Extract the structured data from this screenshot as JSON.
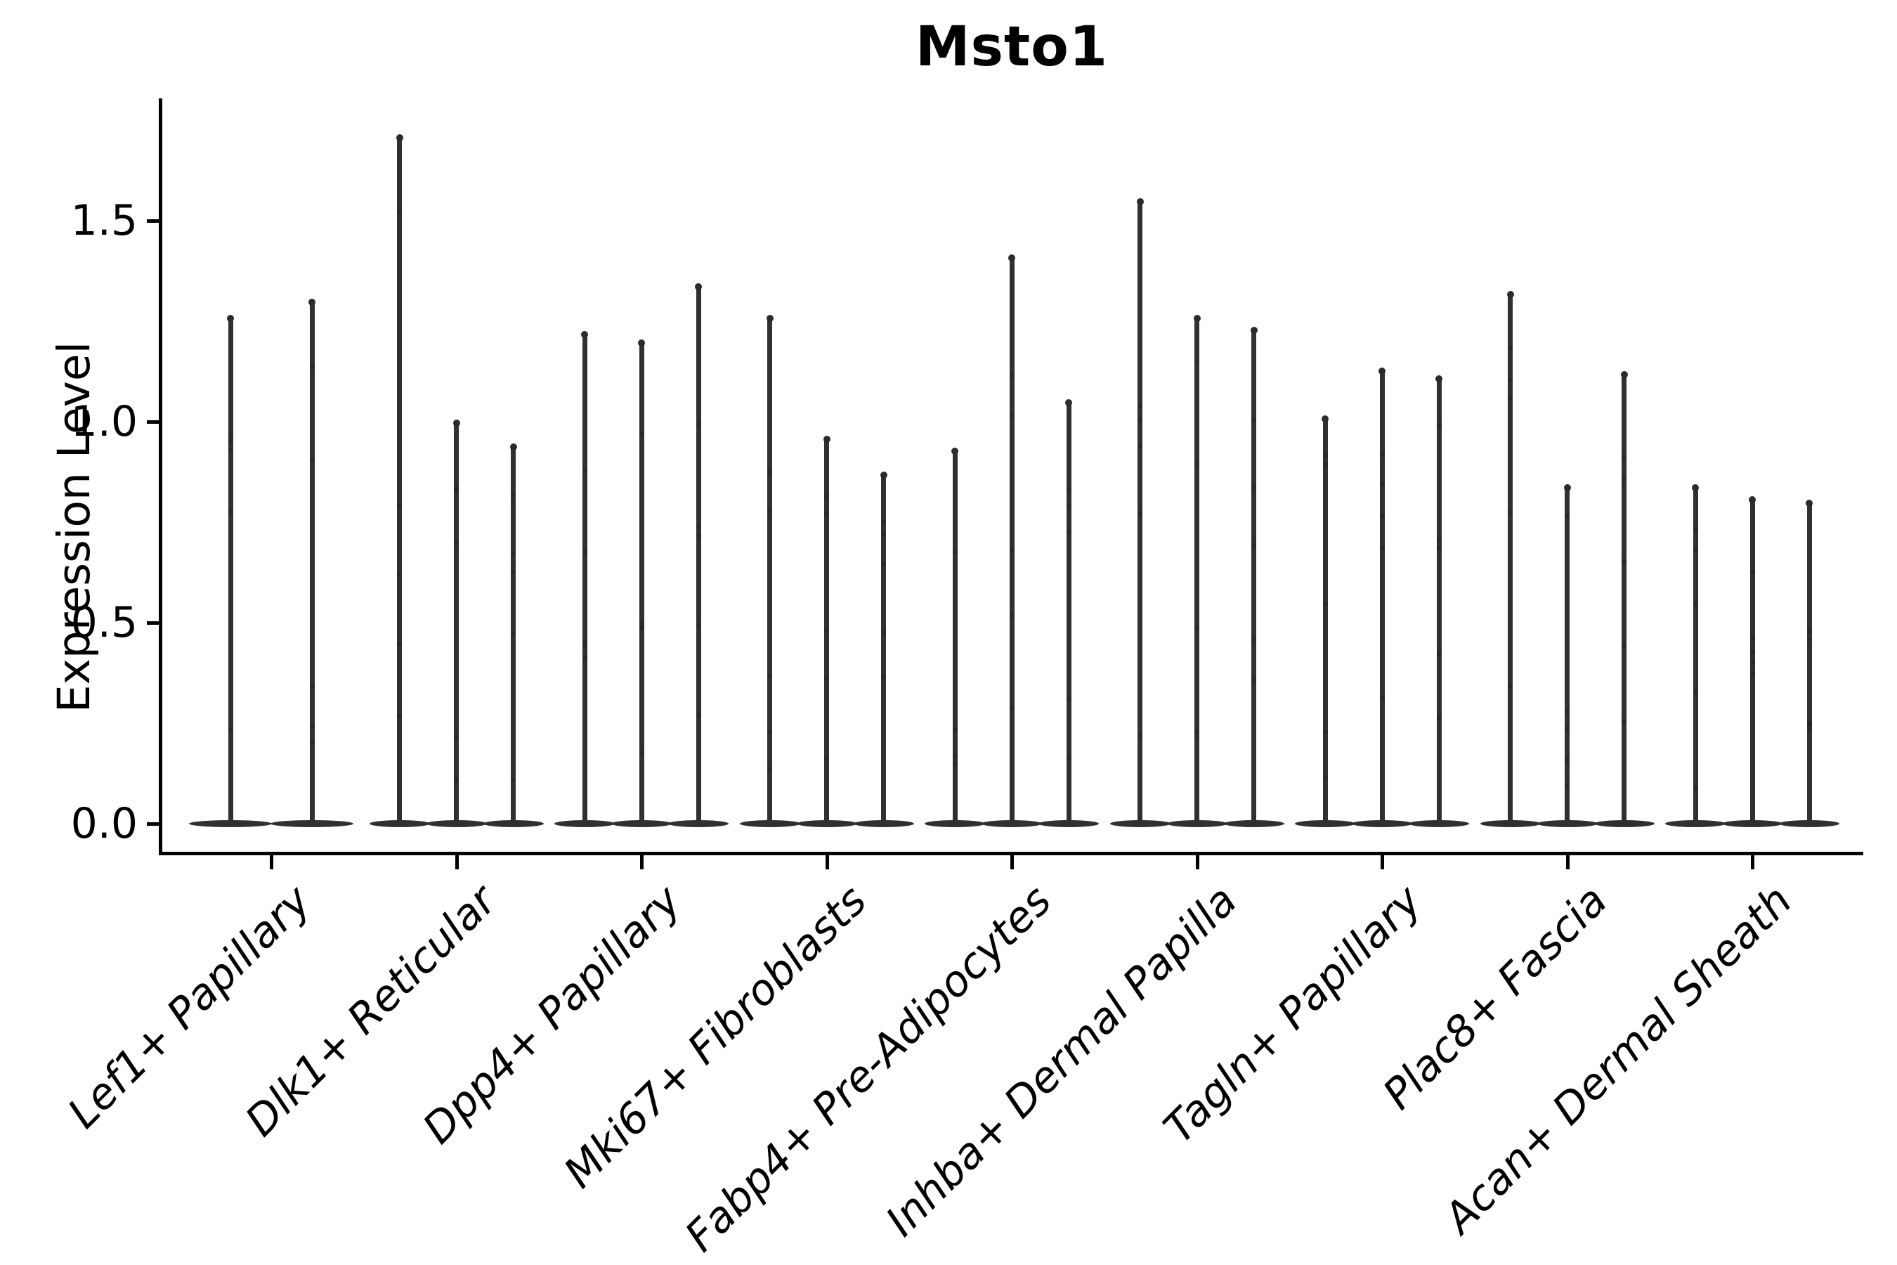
{
  "figure": {
    "title": "Msto1"
  },
  "y_axis": {
    "label": "Expression Level",
    "tick_labels": [
      "0.0",
      "0.5",
      "1.0",
      "1.5"
    ]
  },
  "x_axis": {
    "tick_labels": [
      "Lef1+ Papillary",
      "Dlk1+ Reticular",
      "Dpp4+ Papillary",
      "Mki67+ Fibroblasts",
      "Fabp4+ Pre-Adipocytes",
      "Inhba+ Dermal Papilla",
      "Tagln+ Papillary",
      "Plac8+ Fascia",
      "Acan+ Dermal Sheath"
    ]
  },
  "chart_data": {
    "type": "violin",
    "title": "Msto1",
    "xlabel": "",
    "ylabel": "Expression Level",
    "ylim": [
      -0.08,
      1.81
    ],
    "yticks": [
      0.0,
      0.5,
      1.0,
      1.5
    ],
    "grid": false,
    "legend": "none",
    "orientation": "vertical",
    "style_note": "very narrow spike-shaped violins; density mass concentrated at 0 (flat lens-shaped base on the zero line), thin tail up to the maximum; faint jitter dots along spikes; 3 violins per category (first category has 2 wider violins)",
    "categories": [
      "Lef1+ Papillary",
      "Dlk1+ Reticular",
      "Dpp4+ Papillary",
      "Mki67+ Fibroblasts",
      "Fabp4+ Pre-Adipocytes",
      "Inhba+ Dermal Papilla",
      "Tagln+ Papillary",
      "Plac8+ Fascia",
      "Acan+ Dermal Sheath"
    ],
    "groups": [
      {
        "category": "Lef1+ Papillary",
        "violin_maxima": [
          1.26,
          1.3
        ]
      },
      {
        "category": "Dlk1+ Reticular",
        "violin_maxima": [
          1.71,
          1.0,
          0.94
        ]
      },
      {
        "category": "Dpp4+ Papillary",
        "violin_maxima": [
          1.22,
          1.2,
          1.34
        ]
      },
      {
        "category": "Mki67+ Fibroblasts",
        "violin_maxima": [
          1.26,
          0.96,
          0.87
        ]
      },
      {
        "category": "Fabp4+ Pre-Adipocytes",
        "violin_maxima": [
          0.93,
          1.41,
          1.05
        ]
      },
      {
        "category": "Inhba+ Dermal Papilla",
        "violin_maxima": [
          1.55,
          1.26,
          1.23
        ]
      },
      {
        "category": "Tagln+ Papillary",
        "violin_maxima": [
          1.01,
          1.13,
          1.11
        ]
      },
      {
        "category": "Plac8+ Fascia",
        "violin_maxima": [
          1.32,
          0.84,
          1.12
        ]
      },
      {
        "category": "Acan+ Dermal Sheath",
        "violin_maxima": [
          0.84,
          0.81,
          0.8
        ]
      }
    ],
    "colors": {
      "violin": "#303030",
      "axis": "#000000",
      "text": "#000000",
      "background": "#ffffff"
    }
  }
}
